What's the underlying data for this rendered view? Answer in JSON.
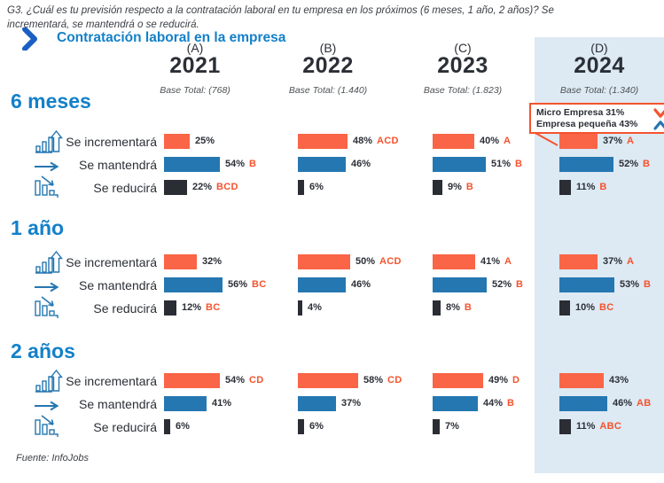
{
  "question": "G3. ¿Cuál es tu previsión respecto a la contratación laboral en tu empresa en los próximos (6 meses, 1 año, 2 años)? Se incrementará, se mantendrá o se reducirá.",
  "title": "Contratación laboral en la empresa",
  "source": "Fuente: InfoJobs",
  "columns": [
    {
      "letter": "(A)",
      "year": "2021",
      "base": "Base Total: (768)"
    },
    {
      "letter": "(B)",
      "year": "2022",
      "base": "Base Total: (1.440)"
    },
    {
      "letter": "(C)",
      "year": "2023",
      "base": "Base Total: (1.823)"
    },
    {
      "letter": "(D)",
      "year": "2024",
      "base": "Base Total: (1.340)"
    }
  ],
  "callout": {
    "line1": "Micro Empresa 31%",
    "line2": "Empresa pequeña 43%"
  },
  "row_labels": [
    "Se incrementará",
    "Se mantendrá",
    "Se reducirá"
  ],
  "sections": [
    {
      "label": "6 meses",
      "cells": [
        [
          {
            "pct": "25%",
            "sig": ""
          },
          {
            "pct": "54%",
            "sig": "B"
          },
          {
            "pct": "22%",
            "sig": "BCD"
          }
        ],
        [
          {
            "pct": "48%",
            "sig": "ACD"
          },
          {
            "pct": "46%",
            "sig": ""
          },
          {
            "pct": "6%",
            "sig": ""
          }
        ],
        [
          {
            "pct": "40%",
            "sig": "A"
          },
          {
            "pct": "51%",
            "sig": "B"
          },
          {
            "pct": "9%",
            "sig": "B"
          }
        ],
        [
          {
            "pct": "37%",
            "sig": "A"
          },
          {
            "pct": "52%",
            "sig": "B"
          },
          {
            "pct": "11%",
            "sig": "B"
          }
        ]
      ]
    },
    {
      "label": "1 año",
      "cells": [
        [
          {
            "pct": "32%",
            "sig": ""
          },
          {
            "pct": "56%",
            "sig": "BC"
          },
          {
            "pct": "12%",
            "sig": "BC"
          }
        ],
        [
          {
            "pct": "50%",
            "sig": "ACD"
          },
          {
            "pct": "46%",
            "sig": ""
          },
          {
            "pct": "4%",
            "sig": ""
          }
        ],
        [
          {
            "pct": "41%",
            "sig": "A"
          },
          {
            "pct": "52%",
            "sig": "B"
          },
          {
            "pct": "8%",
            "sig": "B"
          }
        ],
        [
          {
            "pct": "37%",
            "sig": "A"
          },
          {
            "pct": "53%",
            "sig": "B"
          },
          {
            "pct": "10%",
            "sig": "BC"
          }
        ]
      ]
    },
    {
      "label": "2 años",
      "cells": [
        [
          {
            "pct": "54%",
            "sig": "CD"
          },
          {
            "pct": "41%",
            "sig": ""
          },
          {
            "pct": "6%",
            "sig": ""
          }
        ],
        [
          {
            "pct": "58%",
            "sig": "CD"
          },
          {
            "pct": "37%",
            "sig": ""
          },
          {
            "pct": "6%",
            "sig": ""
          }
        ],
        [
          {
            "pct": "49%",
            "sig": "D"
          },
          {
            "pct": "44%",
            "sig": "B"
          },
          {
            "pct": "7%",
            "sig": ""
          }
        ],
        [
          {
            "pct": "43%",
            "sig": ""
          },
          {
            "pct": "46%",
            "sig": "AB"
          },
          {
            "pct": "11%",
            "sig": "ABC"
          }
        ]
      ]
    }
  ],
  "icons": {
    "increase": "chart-ascending-arrow",
    "maintain": "arrow-right",
    "decrease": "chart-descending-arrow",
    "callout_micro": "chevron-down",
    "callout_pequena": "chevron-up",
    "title_marker": "chevron-right"
  },
  "colors": {
    "orange": "#F96546",
    "blue": "#2577B1",
    "dark": "#2A2D33",
    "sig": "#F4532E",
    "panel": "#DDE9F3",
    "accent": "#1380C9"
  },
  "chart_data": {
    "type": "bar",
    "title": "Contratación laboral en la empresa",
    "unit": "%",
    "categories": [
      "2021 (A)",
      "2022 (B)",
      "2023 (C)",
      "2024 (D)"
    ],
    "base_totals": [
      768,
      1440,
      1823,
      1340
    ],
    "xlim": [
      0,
      100
    ],
    "grid": false,
    "legend_position": "row-labels-left",
    "groups": [
      {
        "period": "6 meses",
        "series": [
          {
            "name": "Se incrementará",
            "values": [
              25,
              48,
              40,
              37
            ],
            "significance": [
              "",
              "ACD",
              "A",
              "A"
            ]
          },
          {
            "name": "Se mantendrá",
            "values": [
              54,
              46,
              51,
              52
            ],
            "significance": [
              "B",
              "",
              "B",
              "B"
            ]
          },
          {
            "name": "Se reducirá",
            "values": [
              22,
              6,
              9,
              11
            ],
            "significance": [
              "BCD",
              "",
              "B",
              "B"
            ]
          }
        ]
      },
      {
        "period": "1 año",
        "series": [
          {
            "name": "Se incrementará",
            "values": [
              32,
              50,
              41,
              37
            ],
            "significance": [
              "",
              "ACD",
              "A",
              "A"
            ]
          },
          {
            "name": "Se mantendrá",
            "values": [
              56,
              46,
              52,
              53
            ],
            "significance": [
              "BC",
              "",
              "B",
              "B"
            ]
          },
          {
            "name": "Se reducirá",
            "values": [
              12,
              4,
              8,
              10
            ],
            "significance": [
              "BC",
              "",
              "B",
              "BC"
            ]
          }
        ]
      },
      {
        "period": "2 años",
        "series": [
          {
            "name": "Se incrementará",
            "values": [
              54,
              58,
              49,
              43
            ],
            "significance": [
              "CD",
              "CD",
              "D",
              ""
            ]
          },
          {
            "name": "Se mantendrá",
            "values": [
              41,
              37,
              44,
              46
            ],
            "significance": [
              "",
              "",
              "B",
              "AB"
            ]
          },
          {
            "name": "Se reducirá",
            "values": [
              6,
              6,
              7,
              11
            ],
            "significance": [
              "",
              "",
              "",
              "ABC"
            ]
          }
        ]
      }
    ],
    "annotations": [
      {
        "text": "Micro Empresa 31%",
        "direction": "down"
      },
      {
        "text": "Empresa pequeña 43%",
        "direction": "up"
      }
    ]
  }
}
